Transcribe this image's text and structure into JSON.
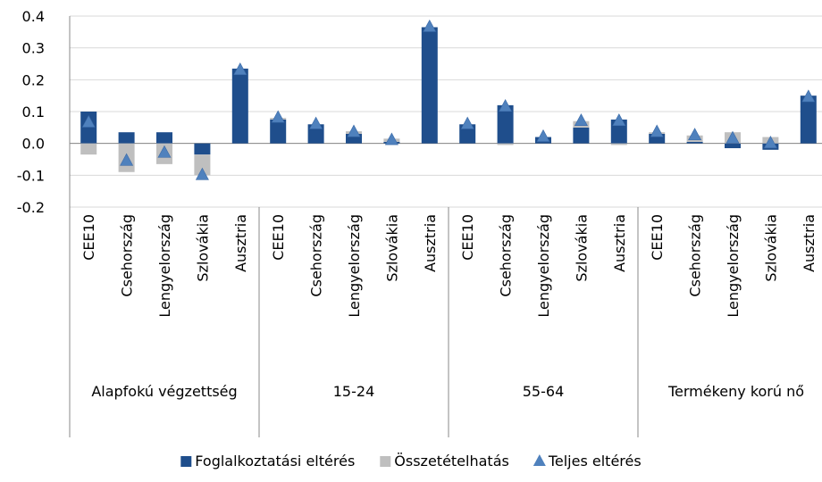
{
  "chart_data": {
    "type": "bar",
    "categories": [
      "CEE10",
      "Csehország",
      "Lengyelország",
      "Szlovákia",
      "Ausztria",
      "CEE10",
      "Csehország",
      "Lengyelország",
      "Szlovákia",
      "Ausztria",
      "CEE10",
      "Csehország",
      "Lengyelország",
      "Szlovákia",
      "Ausztria",
      "CEE10",
      "Csehország",
      "Lengyelország",
      "Szlovákia",
      "Ausztria"
    ],
    "groups": [
      "Alapfokú végzettség",
      "15-24",
      "55-64",
      "Termékeny korú nő"
    ],
    "series": [
      {
        "name": "Foglalkoztatási eltérés",
        "type": "bar",
        "color": "#1f4e8c",
        "values": [
          0.1,
          0.035,
          0.035,
          -0.035,
          0.235,
          0.075,
          0.06,
          0.03,
          0.005,
          0.365,
          0.06,
          0.12,
          0.02,
          0.05,
          0.075,
          0.03,
          0.005,
          -0.015,
          -0.02,
          0.15
        ]
      },
      {
        "name": "Összetételhatás",
        "type": "bar",
        "color": "#bfbfbf",
        "values": [
          -0.035,
          -0.09,
          -0.065,
          -0.065,
          0,
          0.005,
          0,
          0.008,
          0.01,
          0,
          0,
          -0.005,
          0,
          0.02,
          -0.005,
          0.005,
          0.02,
          0.035,
          0.02,
          0
        ]
      },
      {
        "name": "Teljes eltérés",
        "type": "marker",
        "color": "#4f81bd",
        "values": [
          0.065,
          -0.055,
          -0.03,
          -0.1,
          0.23,
          0.08,
          0.06,
          0.035,
          0.01,
          0.365,
          0.06,
          0.115,
          0.02,
          0.07,
          0.07,
          0.035,
          0.025,
          0.015,
          0,
          0.145
        ]
      }
    ],
    "ylim": [
      -0.2,
      0.4
    ],
    "yticks": [
      -0.2,
      -0.1,
      {
        "value": 0,
        "label": "0.0"
      },
      0.1,
      0.2,
      0.3,
      0.4
    ],
    "grid": true
  }
}
